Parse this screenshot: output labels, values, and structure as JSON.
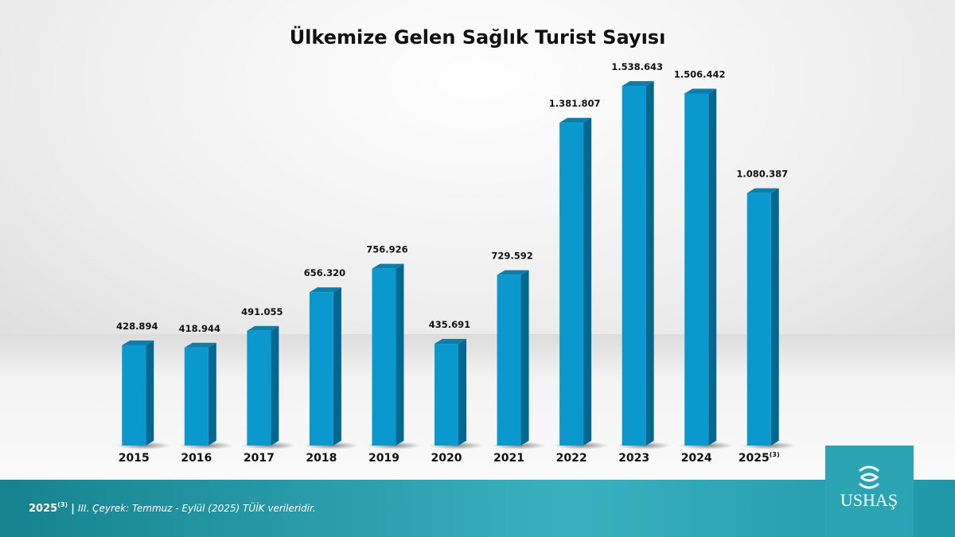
{
  "chart_data": {
    "type": "bar3d",
    "title": "Ülkemize Gelen Sağlık Turist Sayısı",
    "categories": [
      "2015",
      "2016",
      "2017",
      "2018",
      "2019",
      "2020",
      "2021",
      "2022",
      "2023",
      "2024",
      "2025"
    ],
    "category_superscripts": [
      null,
      null,
      null,
      null,
      null,
      null,
      null,
      null,
      null,
      null,
      "(3)"
    ],
    "values": [
      428894,
      418944,
      491055,
      656320,
      756926,
      435691,
      729592,
      1381807,
      1538643,
      1506442,
      1080387
    ],
    "value_labels": [
      "428.894",
      "418.944",
      "491.055",
      "656.320",
      "756.926",
      "435.691",
      "729.592",
      "1.381.807",
      "1.538.643",
      "1.506.442",
      "1.080.387"
    ],
    "color": "#0a99cf",
    "side_color": "#03688f",
    "top_color": "#0b7fac",
    "ylim": [
      0,
      1600000
    ]
  },
  "footnote": {
    "label": "2025",
    "mark": "(3)",
    "separator": "|",
    "text": "III. Çeyrek: Temmuz - Eylül (2025) TÜİK verileridir."
  },
  "logo": {
    "text": "USHAŞ"
  }
}
